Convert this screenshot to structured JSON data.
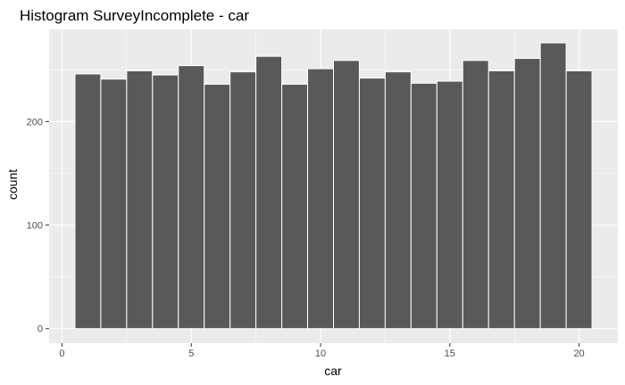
{
  "chart_data": {
    "type": "bar",
    "title": "Histogram SurveyIncomplete - car",
    "xlabel": "car",
    "ylabel": "count",
    "x_ticks": [
      0,
      5,
      10,
      15,
      20
    ],
    "y_ticks": [
      0,
      100,
      200
    ],
    "xlim": [
      -0.5,
      21.5
    ],
    "ylim": [
      -14,
      289
    ],
    "bin_width": 1,
    "bins": [
      {
        "x": 1,
        "count": 246
      },
      {
        "x": 2,
        "count": 241
      },
      {
        "x": 3,
        "count": 249
      },
      {
        "x": 4,
        "count": 245
      },
      {
        "x": 5,
        "count": 254
      },
      {
        "x": 6,
        "count": 236
      },
      {
        "x": 7,
        "count": 248
      },
      {
        "x": 8,
        "count": 263
      },
      {
        "x": 9,
        "count": 236
      },
      {
        "x": 10,
        "count": 251
      },
      {
        "x": 11,
        "count": 259
      },
      {
        "x": 12,
        "count": 242
      },
      {
        "x": 13,
        "count": 248
      },
      {
        "x": 14,
        "count": 237
      },
      {
        "x": 15,
        "count": 239
      },
      {
        "x": 16,
        "count": 259
      },
      {
        "x": 17,
        "count": 249
      },
      {
        "x": 18,
        "count": 261
      },
      {
        "x": 19,
        "count": 276
      },
      {
        "x": 20,
        "count": 249
      }
    ],
    "grid": true,
    "legend": "none",
    "colors": {
      "panel_background": "#ebebeb",
      "bar_fill": "#595959",
      "bar_outline": "#ffffff",
      "grid": "#ffffff"
    }
  }
}
